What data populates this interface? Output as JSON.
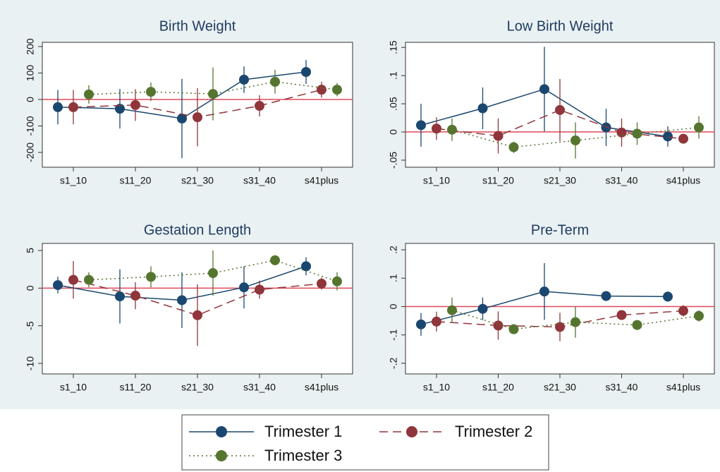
{
  "legend": {
    "items": [
      {
        "name": "Trimester 1",
        "color": "#1a476f",
        "style": "solid"
      },
      {
        "name": "Trimester 2",
        "color": "#90353b",
        "style": "dash"
      },
      {
        "name": "Trimester 3",
        "color": "#55752f",
        "style": "dot"
      }
    ]
  },
  "chart_data": [
    {
      "type": "errorbar",
      "title": "Birth Weight",
      "categories": [
        "s1_10",
        "s11_20",
        "s21_30",
        "s31_40",
        "s41plus"
      ],
      "ylim": [
        -256,
        216
      ],
      "yticks": [
        -200,
        -100,
        0,
        100,
        200
      ],
      "refline": 0,
      "series": [
        {
          "values": [
            -29,
            -35,
            -72,
            75,
            104
          ],
          "errors": [
            65,
            75,
            150,
            50,
            45
          ]
        },
        {
          "values": [
            -29,
            -21,
            -67,
            -24,
            37
          ],
          "errors": [
            65,
            60,
            110,
            40,
            30
          ]
        },
        {
          "values": [
            19,
            29,
            21,
            67,
            37
          ],
          "errors": [
            35,
            35,
            100,
            45,
            25
          ]
        }
      ]
    },
    {
      "type": "errorbar",
      "title": "Low Birth Weight",
      "categories": [
        "s1_10",
        "s11_20",
        "s21_30",
        "s31_40",
        "s41plus"
      ],
      "ylim": [
        -0.0625,
        0.159
      ],
      "yticks": [
        {
          "value": -0.05,
          "label": "-.05"
        },
        0,
        {
          "value": 0.05,
          "label": ".05"
        },
        {
          "value": 0.1,
          "label": ".1"
        },
        {
          "value": 0.15,
          "label": ".15"
        }
      ],
      "refline": 0,
      "series": [
        {
          "values": [
            0.012,
            0.042,
            0.076,
            0.008,
            -0.008
          ],
          "errors": [
            0.038,
            0.037,
            0.075,
            0.033,
            0.018
          ]
        },
        {
          "values": [
            0.006,
            -0.007,
            0.039,
            -0.001,
            -0.012
          ],
          "errors": [
            0.02,
            0.031,
            0.055,
            0.025,
            0.008
          ]
        },
        {
          "values": [
            0.004,
            -0.027,
            -0.015,
            -0.003,
            0.008
          ],
          "errors": [
            0.02,
            0.01,
            0.032,
            0.02,
            0.02
          ]
        }
      ]
    },
    {
      "type": "errorbar",
      "title": "Gestation Length",
      "categories": [
        "s1_10",
        "s11_20",
        "s21_30",
        "s31_40",
        "s41plus"
      ],
      "ylim": [
        -11.4,
        5.94
      ],
      "yticks": [
        -10,
        -5,
        0,
        5
      ],
      "refline": 0,
      "series": [
        {
          "values": [
            0.4,
            -1.1,
            -1.6,
            0.1,
            2.9
          ],
          "errors": [
            1.1,
            3.6,
            3.7,
            2.8,
            1.2
          ]
        },
        {
          "values": [
            1.1,
            -1,
            -3.6,
            -0.2,
            0.6
          ],
          "errors": [
            2.5,
            1.8,
            4.1,
            1.2,
            0.8
          ]
        },
        {
          "values": [
            1.1,
            1.5,
            2.0,
            3.7,
            0.9
          ],
          "errors": [
            1,
            1.4,
            3,
            0.6,
            1.2
          ]
        }
      ]
    },
    {
      "type": "errorbar",
      "title": "Pre-Term",
      "categories": [
        "s1_10",
        "s11_20",
        "s21_30",
        "s31_40",
        "s41plus"
      ],
      "ylim": [
        -0.2375,
        0.2225
      ],
      "yticks": [
        {
          "value": -0.2,
          "label": "-.2"
        },
        {
          "value": -0.1,
          "label": "-.1"
        },
        0,
        {
          "value": 0.1,
          "label": ".1"
        },
        {
          "value": 0.2,
          "label": ".2"
        }
      ],
      "refline": 0,
      "series": [
        {
          "values": [
            -0.063,
            -0.008,
            0.053,
            0.037,
            0.035
          ],
          "errors": [
            0.04,
            0.04,
            0.1,
            0.015,
            0.018
          ]
        },
        {
          "values": [
            -0.053,
            -0.067,
            -0.072,
            -0.03,
            -0.015
          ],
          "errors": [
            0.035,
            0.05,
            0.05,
            0.015,
            0.02
          ]
        },
        {
          "values": [
            -0.013,
            -0.08,
            -0.055,
            -0.065,
            -0.033
          ],
          "errors": [
            0.045,
            0.01,
            0.055,
            0.01,
            0.02
          ]
        }
      ]
    }
  ]
}
